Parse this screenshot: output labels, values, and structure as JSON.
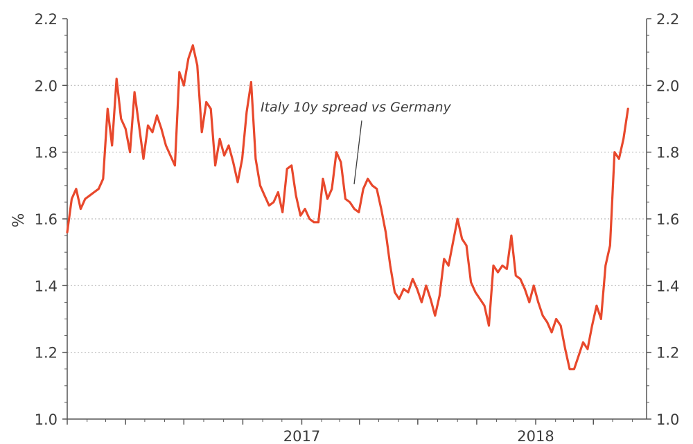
{
  "chart_data": {
    "type": "line",
    "ylabel": "%",
    "ylim": [
      1.0,
      2.2
    ],
    "yticks": [
      "1.0",
      "1.2",
      "1.4",
      "1.6",
      "1.8",
      "2.0",
      "2.2"
    ],
    "right_axis_mirrors_left": true,
    "x_tick_labels": [
      {
        "label": "2017",
        "x": "2017-01-01"
      },
      {
        "label": "2018",
        "x": "2018-01-01"
      }
    ],
    "grid": "horizontal dotted",
    "annotation": "Italy 10y spread vs Germany",
    "colors": {
      "line": "#e8482c",
      "axis": "#555555",
      "grid": "#bdbdbd"
    },
    "series": [
      {
        "x": [
          "2016-01-01",
          "2016-01-08",
          "2016-01-15",
          "2016-01-22",
          "2016-01-29",
          "2016-02-05",
          "2016-02-12",
          "2016-02-19",
          "2016-02-26",
          "2016-03-04",
          "2016-03-11",
          "2016-03-18",
          "2016-03-25",
          "2016-04-01",
          "2016-04-08",
          "2016-04-15",
          "2016-04-22",
          "2016-04-29",
          "2016-05-06",
          "2016-05-13",
          "2016-05-20",
          "2016-05-27",
          "2016-06-03",
          "2016-06-10",
          "2016-06-17",
          "2016-06-24",
          "2016-07-01",
          "2016-07-08",
          "2016-07-15",
          "2016-07-22",
          "2016-07-29",
          "2016-08-05",
          "2016-08-12",
          "2016-08-19",
          "2016-08-26",
          "2016-09-02",
          "2016-09-09",
          "2016-09-16",
          "2016-09-23",
          "2016-09-30",
          "2016-10-07",
          "2016-10-14",
          "2016-10-21",
          "2016-10-28",
          "2016-11-04",
          "2016-11-11",
          "2016-11-18",
          "2016-11-25",
          "2016-12-02",
          "2016-12-09",
          "2016-12-16",
          "2016-12-23",
          "2016-12-30",
          "2017-01-06",
          "2017-01-13",
          "2017-01-20",
          "2017-01-27",
          "2017-02-03",
          "2017-02-10",
          "2017-02-17",
          "2017-02-24",
          "2017-03-03",
          "2017-03-10",
          "2017-03-17",
          "2017-03-24",
          "2017-03-31",
          "2017-04-07",
          "2017-04-14",
          "2017-04-21",
          "2017-04-28",
          "2017-05-05",
          "2017-05-12",
          "2017-05-19",
          "2017-05-26",
          "2017-06-02",
          "2017-06-09",
          "2017-06-16",
          "2017-06-23",
          "2017-06-30",
          "2017-07-07",
          "2017-07-14",
          "2017-07-21",
          "2017-07-28",
          "2017-08-04",
          "2017-08-11",
          "2017-08-18",
          "2017-08-25",
          "2017-09-01",
          "2017-09-08",
          "2017-09-15",
          "2017-09-22",
          "2017-09-29",
          "2017-10-06",
          "2017-10-13",
          "2017-10-20",
          "2017-10-27",
          "2017-11-03",
          "2017-11-10",
          "2017-11-17",
          "2017-11-24",
          "2017-12-01",
          "2017-12-08",
          "2017-12-15",
          "2017-12-22",
          "2017-12-29",
          "2018-01-05",
          "2018-01-12",
          "2018-01-19",
          "2018-01-26",
          "2018-02-02",
          "2018-02-09",
          "2018-02-16",
          "2018-02-23",
          "2018-03-02",
          "2018-03-09",
          "2018-03-16",
          "2018-03-23",
          "2018-03-30",
          "2018-04-06",
          "2018-04-13",
          "2018-04-20",
          "2018-04-27",
          "2018-05-04",
          "2018-05-11",
          "2018-05-18",
          "2018-05-25"
        ],
        "y": [
          1.56,
          1.66,
          1.69,
          1.63,
          1.66,
          1.67,
          1.68,
          1.69,
          1.72,
          1.93,
          1.82,
          2.02,
          1.9,
          1.87,
          1.8,
          1.98,
          1.88,
          1.78,
          1.88,
          1.86,
          1.91,
          1.87,
          1.82,
          1.79,
          1.76,
          2.04,
          2.0,
          2.08,
          2.12,
          2.06,
          1.86,
          1.95,
          1.93,
          1.76,
          1.84,
          1.79,
          1.82,
          1.77,
          1.71,
          1.78,
          1.92,
          2.01,
          1.78,
          1.7,
          1.67,
          1.64,
          1.65,
          1.68,
          1.62,
          1.75,
          1.76,
          1.67,
          1.61,
          1.63,
          1.6,
          1.59,
          1.59,
          1.72,
          1.66,
          1.69,
          1.8,
          1.77,
          1.66,
          1.65,
          1.63,
          1.62,
          1.69,
          1.72,
          1.7,
          1.69,
          1.63,
          1.56,
          1.46,
          1.38,
          1.36,
          1.39,
          1.38,
          1.42,
          1.39,
          1.35,
          1.4,
          1.36,
          1.31,
          1.37,
          1.48,
          1.46,
          1.53,
          1.6,
          1.54,
          1.52,
          1.41,
          1.38,
          1.36,
          1.34,
          1.28,
          1.46,
          1.44,
          1.46,
          1.45,
          1.55,
          1.43,
          1.42,
          1.39,
          1.35,
          1.4,
          1.35,
          1.31,
          1.29,
          1.26,
          1.3,
          1.28,
          1.21,
          1.15,
          1.15,
          1.19,
          1.23,
          1.21,
          1.28,
          1.34,
          1.3,
          1.46,
          1.52,
          1.8,
          1.78,
          1.84,
          1.93
        ]
      }
    ]
  }
}
